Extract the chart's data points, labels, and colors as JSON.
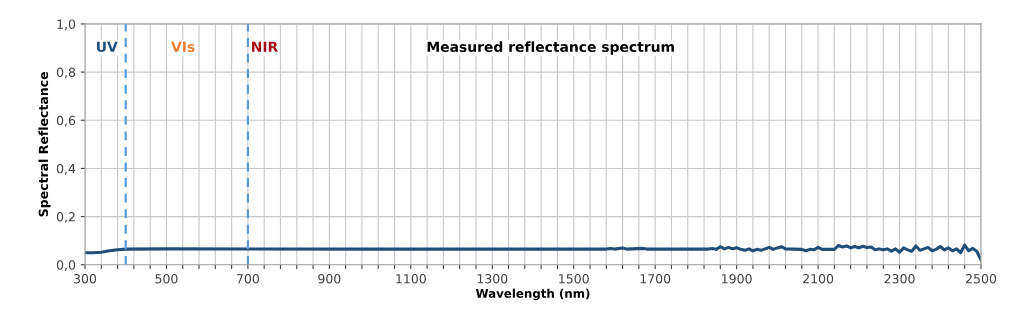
{
  "chart_data": {
    "type": "line",
    "xlabel": "Wavelength (nm)",
    "ylabel": "Spectral Reflectance",
    "annotations": [
      "UV",
      "VIs",
      "NIR",
      "Measured reflectance spectrum"
    ],
    "x": [
      300,
      320,
      340,
      360,
      380,
      400,
      500,
      1000,
      1500,
      1580,
      1590,
      1600,
      1620,
      1630,
      1670,
      1680,
      1830,
      1840,
      1850,
      1860,
      1870,
      1880,
      1890,
      1900,
      1910,
      1920,
      1930,
      1940,
      1950,
      1960,
      1970,
      1980,
      1990,
      2000,
      2010,
      2020,
      2060,
      2070,
      2080,
      2090,
      2100,
      2110,
      2140,
      2150,
      2160,
      2170,
      2180,
      2190,
      2200,
      2210,
      2220,
      2230,
      2240,
      2250,
      2260,
      2270,
      2280,
      2290,
      2300,
      2310,
      2320,
      2330,
      2340,
      2350,
      2360,
      2370,
      2380,
      2390,
      2400,
      2410,
      2420,
      2430,
      2440,
      2450,
      2460,
      2470,
      2480,
      2490,
      2500
    ],
    "series": [
      {
        "color": "#1f4e79",
        "values": [
          0.05,
          0.05,
          0.052,
          0.058,
          0.062,
          0.065,
          0.066,
          0.065,
          0.065,
          0.065,
          0.068,
          0.065,
          0.07,
          0.065,
          0.068,
          0.065,
          0.065,
          0.068,
          0.064,
          0.075,
          0.066,
          0.072,
          0.066,
          0.071,
          0.064,
          0.06,
          0.066,
          0.058,
          0.064,
          0.06,
          0.066,
          0.072,
          0.064,
          0.07,
          0.075,
          0.066,
          0.064,
          0.058,
          0.064,
          0.062,
          0.072,
          0.064,
          0.064,
          0.08,
          0.074,
          0.078,
          0.07,
          0.076,
          0.07,
          0.077,
          0.072,
          0.074,
          0.062,
          0.066,
          0.062,
          0.066,
          0.056,
          0.066,
          0.052,
          0.07,
          0.062,
          0.056,
          0.078,
          0.06,
          0.066,
          0.072,
          0.058,
          0.064,
          0.076,
          0.062,
          0.07,
          0.058,
          0.066,
          0.05,
          0.082,
          0.058,
          0.068,
          0.055,
          0.02
        ]
      }
    ],
    "ref_lines": [
      {
        "axis": "x",
        "value": 400,
        "color": "#5b9bd5",
        "line_style": "dashed"
      },
      {
        "axis": "x",
        "value": 700,
        "color": "#5b9bd5",
        "line_style": "dashed"
      }
    ],
    "xlim": [
      300,
      2500
    ],
    "xticks": [
      300,
      {
        "value": 340,
        "label": null
      },
      {
        "value": 380,
        "label": null
      },
      {
        "value": 420,
        "label": null
      },
      {
        "value": 460,
        "label": null
      },
      500,
      {
        "value": 540,
        "label": null
      },
      {
        "value": 580,
        "label": null
      },
      {
        "value": 620,
        "label": null
      },
      {
        "value": 660,
        "label": null
      },
      700,
      {
        "value": 740,
        "label": null
      },
      {
        "value": 780,
        "label": null
      },
      {
        "value": 820,
        "label": null
      },
      {
        "value": 860,
        "label": null
      },
      900,
      {
        "value": 940,
        "label": null
      },
      {
        "value": 980,
        "label": null
      },
      {
        "value": 1020,
        "label": null
      },
      {
        "value": 1060,
        "label": null
      },
      1100,
      {
        "value": 1140,
        "label": null
      },
      {
        "value": 1180,
        "label": null
      },
      {
        "value": 1220,
        "label": null
      },
      {
        "value": 1260,
        "label": null
      },
      1300,
      {
        "value": 1340,
        "label": null
      },
      {
        "value": 1380,
        "label": null
      },
      {
        "value": 1420,
        "label": null
      },
      {
        "value": 1460,
        "label": null
      },
      1500,
      {
        "value": 1540,
        "label": null
      },
      {
        "value": 1580,
        "label": null
      },
      {
        "value": 1620,
        "label": null
      },
      {
        "value": 1660,
        "label": null
      },
      1700,
      {
        "value": 1740,
        "label": null
      },
      {
        "value": 1780,
        "label": null
      },
      {
        "value": 1820,
        "label": null
      },
      {
        "value": 1860,
        "label": null
      },
      1900,
      {
        "value": 1940,
        "label": null
      },
      {
        "value": 1980,
        "label": null
      },
      {
        "value": 2020,
        "label": null
      },
      {
        "value": 2060,
        "label": null
      },
      2100,
      {
        "value": 2140,
        "label": null
      },
      {
        "value": 2180,
        "label": null
      },
      {
        "value": 2220,
        "label": null
      },
      {
        "value": 2260,
        "label": null
      },
      2300,
      {
        "value": 2340,
        "label": null
      },
      {
        "value": 2380,
        "label": null
      },
      {
        "value": 2420,
        "label": null
      },
      {
        "value": 2460,
        "label": null
      },
      2500
    ],
    "ylim": [
      0,
      1.0
    ],
    "yticks": [
      {
        "value": 0,
        "label": "0,0"
      },
      {
        "value": 0.2,
        "label": "0,2"
      },
      {
        "value": 0.4,
        "label": "0,4"
      },
      {
        "value": 0.6,
        "label": "0,6"
      },
      {
        "value": 0.8,
        "label": "0,8"
      },
      {
        "value": 1.0,
        "label": "1,0"
      }
    ],
    "grid": true,
    "legend": false,
    "marker": "none",
    "line_style": "solid"
  }
}
